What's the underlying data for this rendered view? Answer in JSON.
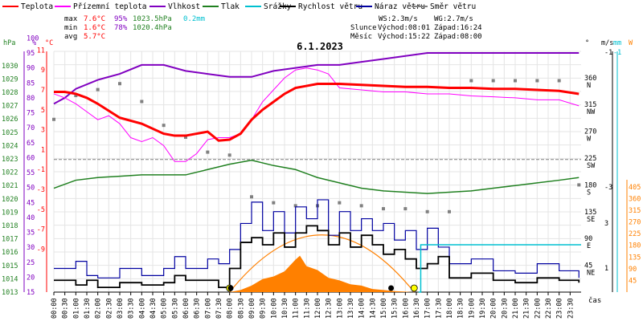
{
  "chart_data": {
    "type": "line",
    "title": "6.1.2023",
    "xlabel": "čas",
    "legend": [
      {
        "label": "Teplota",
        "color": "#ff0000"
      },
      {
        "label": "Přízemní teplota",
        "color": "#ff00ff"
      },
      {
        "label": "Vlhkost",
        "color": "#8000c0"
      },
      {
        "label": "Tlak",
        "color": "#208020"
      },
      {
        "label": "Srážky",
        "color": "#00c0d0"
      },
      {
        "label": "Rychlost větru",
        "color": "#000000"
      },
      {
        "label": "Náraz větru",
        "color": "#0000a0"
      },
      {
        "label": "Směr větru",
        "color": "#808080"
      }
    ],
    "stats": {
      "labels": [
        "max",
        "min",
        "avg"
      ],
      "temperature": [
        "7.6°C",
        "1.6°C",
        "5.7°C"
      ],
      "humidity": [
        "95%",
        "78%",
        ""
      ],
      "pressure": [
        "1023.5hPa",
        "1020.4hPa",
        ""
      ],
      "rain": [
        "0.2mm",
        "",
        ""
      ]
    },
    "info": {
      "ws": "WS:2.3m/s",
      "wg": "WG:2.7m/s",
      "sun": {
        "label": "Slunce",
        "rise": "Východ:08:01",
        "set": "Západ:16:24"
      },
      "moon": {
        "label": "Měsíc",
        "rise": "Východ:15:22",
        "set": "Západ:08:00"
      }
    },
    "axes": {
      "pressure": {
        "title": "hPa",
        "ticks": [
          "1030",
          "1029",
          "1028",
          "1027",
          "1026",
          "1025",
          "1024",
          "1023",
          "1022",
          "1021",
          "1020",
          "1019",
          "1018",
          "1017",
          "1016",
          "1015",
          "1014",
          "1013"
        ],
        "color": "#208020"
      },
      "humidity": {
        "title": "%",
        "ticks": [
          "100",
          "95",
          "90",
          "85",
          "80",
          "75",
          "70",
          "65",
          "60",
          "55",
          "50",
          "45",
          "40",
          "35",
          "30",
          "25",
          "20",
          "15"
        ],
        "color": "#8000c0"
      },
      "temperature": {
        "title": "°C",
        "ticks": [
          "11",
          "9",
          "7",
          "5",
          "3",
          "1",
          "-1",
          "-3",
          "-5",
          "-7",
          "-9"
        ],
        "color": "#ff0000"
      },
      "direction": {
        "title": "°",
        "ticks": [
          {
            "deg": "360",
            "dir": "N"
          },
          {
            "deg": "315",
            "dir": "NW"
          },
          {
            "deg": "270",
            "dir": "W"
          },
          {
            "deg": "225",
            "dir": "SW"
          },
          {
            "deg": "180",
            "dir": "S"
          },
          {
            "deg": "135",
            "dir": "SE"
          },
          {
            "deg": "90",
            "dir": "E"
          },
          {
            "deg": "45",
            "dir": "NE"
          }
        ]
      },
      "wind": {
        "title": "m/s",
        "ticks": [
          "-1",
          "-3",
          "3",
          "1"
        ],
        "color": "#000000"
      },
      "rain": {
        "title": "mm",
        "ticks": [
          "-1"
        ],
        "color": "#00c0d0"
      },
      "solar": {
        "title": "W",
        "ticks": [
          "405",
          "360",
          "315",
          "270",
          "225",
          "180",
          "135",
          "90",
          "45"
        ],
        "color": "#ff8000"
      },
      "x_ticks": [
        "00:00",
        "00:30",
        "01:00",
        "01:30",
        "02:00",
        "02:30",
        "03:00",
        "03:30",
        "04:00",
        "04:30",
        "05:00",
        "05:30",
        "06:00",
        "06:30",
        "07:00",
        "07:30",
        "08:00",
        "08:30",
        "09:00",
        "09:30",
        "10:00",
        "10:30",
        "11:00",
        "11:30",
        "12:00",
        "12:30",
        "13:00",
        "13:30",
        "14:00",
        "14:30",
        "15:00",
        "15:30",
        "16:00",
        "16:30",
        "17:00",
        "17:30",
        "18:00",
        "18:30",
        "19:00",
        "19:30",
        "20:00",
        "20:30",
        "21:00",
        "21:30",
        "22:00",
        "22:30",
        "23:00",
        "23:30"
      ]
    },
    "series": [
      {
        "name": "Teplota",
        "unit": "°C",
        "hours": [
          0,
          0.5,
          1,
          1.5,
          2,
          3,
          4,
          5,
          5.5,
          6,
          6.5,
          7,
          7.5,
          8,
          8.5,
          9,
          9.5,
          10,
          10.5,
          11,
          11.5,
          12,
          13,
          14,
          15,
          16,
          17,
          18,
          19,
          20,
          21,
          22,
          23,
          23.9
        ],
        "values": [
          6.8,
          6.8,
          6.6,
          6.2,
          5.6,
          4.2,
          3.6,
          2.6,
          2.4,
          2.4,
          2.6,
          2.8,
          1.9,
          2.0,
          2.6,
          4.0,
          5.0,
          5.8,
          6.6,
          7.2,
          7.4,
          7.6,
          7.6,
          7.5,
          7.4,
          7.3,
          7.3,
          7.2,
          7.2,
          7.1,
          7.1,
          7.0,
          6.9,
          6.6
        ]
      },
      {
        "name": "Přízemní teplota",
        "unit": "°C",
        "hours": [
          0,
          0.5,
          1,
          1.5,
          2,
          2.5,
          3,
          3.5,
          4,
          4.5,
          5,
          5.5,
          6,
          6.5,
          7,
          7.5,
          8,
          8.5,
          9,
          9.5,
          10,
          10.5,
          11,
          11.5,
          12,
          12.5,
          13,
          14,
          15,
          16,
          17,
          18,
          19,
          20,
          21,
          22,
          23,
          23.9
        ],
        "values": [
          6.6,
          6.2,
          5.6,
          4.8,
          4.0,
          4.4,
          3.6,
          2.2,
          1.8,
          2.2,
          1.4,
          -0.2,
          -0.2,
          0.6,
          2.0,
          2.2,
          2.2,
          2.6,
          4.0,
          5.8,
          7.0,
          8.2,
          9.0,
          9.2,
          9.0,
          8.6,
          7.2,
          7.0,
          6.8,
          6.8,
          6.6,
          6.6,
          6.4,
          6.3,
          6.2,
          6.0,
          6.0,
          5.4
        ]
      },
      {
        "name": "Vlhkost",
        "unit": "%",
        "hours": [
          0,
          0.5,
          1,
          2,
          3,
          4,
          5,
          6,
          7,
          8,
          9,
          10,
          11,
          12,
          13,
          14,
          15,
          16,
          17,
          18,
          19,
          20,
          21,
          22,
          23,
          23.9
        ],
        "values": [
          78,
          80,
          83,
          86,
          88,
          91,
          91,
          89,
          88,
          87,
          87,
          89,
          90,
          91,
          91,
          92,
          93,
          94,
          95,
          95,
          95,
          95,
          95,
          95,
          95,
          95
        ]
      },
      {
        "name": "Tlak",
        "unit": "hPa",
        "hours": [
          0,
          1,
          2,
          3,
          4,
          5,
          6,
          7,
          8,
          9,
          10,
          11,
          12,
          13,
          14,
          15,
          16,
          17,
          18,
          19,
          20,
          21,
          22,
          23,
          23.9
        ],
        "values": [
          1020.8,
          1021.4,
          1021.6,
          1021.7,
          1021.8,
          1021.8,
          1021.8,
          1022.2,
          1022.6,
          1022.9,
          1022.5,
          1022.2,
          1021.6,
          1021.2,
          1020.8,
          1020.6,
          1020.5,
          1020.4,
          1020.5,
          1020.6,
          1020.8,
          1021.0,
          1021.2,
          1021.4,
          1021.6
        ]
      },
      {
        "name": "Srážky",
        "unit": "mm",
        "hours": [
          16.6,
          16.7,
          24.0
        ],
        "values": [
          0.0,
          0.2,
          0.2
        ]
      },
      {
        "name": "Rychlost větru",
        "unit": "m/s",
        "hours": [
          0,
          1,
          1.5,
          2,
          3,
          4,
          5,
          5.5,
          6,
          7,
          7.5,
          8,
          8.5,
          9,
          9.5,
          10,
          10.5,
          11,
          11.5,
          12,
          12.5,
          13,
          13.5,
          14,
          14.5,
          15,
          15.5,
          16,
          16.5,
          17,
          17.5,
          18,
          19,
          20,
          21,
          22,
          23,
          23.9
        ],
        "values": [
          0.5,
          0.3,
          0.5,
          0.2,
          0.4,
          0.3,
          0.4,
          0.7,
          0.5,
          0.5,
          0.2,
          1.0,
          2.1,
          2.3,
          2.0,
          2.5,
          1.9,
          2.5,
          2.8,
          2.6,
          2.0,
          2.5,
          1.9,
          2.4,
          2.0,
          1.6,
          1.8,
          1.4,
          1.0,
          1.2,
          1.5,
          0.6,
          0.8,
          0.5,
          0.4,
          0.6,
          0.5,
          0.4
        ]
      },
      {
        "name": "Náraz větru",
        "unit": "m/s",
        "hours": [
          0,
          1,
          1.5,
          2,
          3,
          4,
          5,
          5.5,
          6,
          7,
          7.5,
          8,
          8.5,
          9,
          9.5,
          10,
          10.5,
          11,
          11.5,
          12,
          12.5,
          13,
          13.5,
          14,
          14.5,
          15,
          15.5,
          16,
          16.5,
          17,
          17.5,
          18,
          19,
          20,
          21,
          22,
          23,
          23.9
        ],
        "values": [
          1.0,
          1.3,
          0.7,
          0.6,
          1.0,
          0.7,
          1.0,
          1.5,
          1.0,
          1.4,
          1.2,
          1.8,
          2.9,
          3.8,
          2.6,
          3.4,
          2.5,
          3.6,
          3.1,
          3.9,
          2.4,
          3.4,
          2.6,
          3.1,
          2.6,
          2.9,
          2.2,
          2.6,
          1.8,
          2.7,
          1.9,
          1.2,
          1.4,
          0.9,
          0.8,
          1.2,
          0.9,
          0.6
        ]
      },
      {
        "name": "Směr větru",
        "unit": "°",
        "hours": [
          0,
          1,
          2,
          3,
          4,
          5,
          6,
          7,
          8,
          9,
          10,
          11,
          12,
          13,
          14,
          15,
          16,
          17,
          18,
          19,
          20,
          21,
          22,
          23,
          23.9
        ],
        "values": [
          290,
          330,
          340,
          350,
          320,
          280,
          260,
          235,
          230,
          160,
          150,
          145,
          145,
          150,
          145,
          140,
          140,
          135,
          135,
          355,
          355,
          355,
          355,
          355,
          180
        ]
      },
      {
        "name": "Sluneční záření",
        "unit": "W",
        "hours": [
          8.0,
          8.5,
          9.0,
          9.5,
          10.0,
          10.5,
          11.0,
          11.2,
          11.5,
          12.0,
          12.5,
          13.0,
          13.5,
          14.0,
          14.5,
          15.0,
          15.5,
          16.0,
          16.3
        ],
        "values": [
          0,
          8,
          25,
          50,
          60,
          80,
          125,
          140,
          100,
          85,
          55,
          45,
          30,
          25,
          12,
          8,
          4,
          2,
          0
        ]
      }
    ]
  }
}
